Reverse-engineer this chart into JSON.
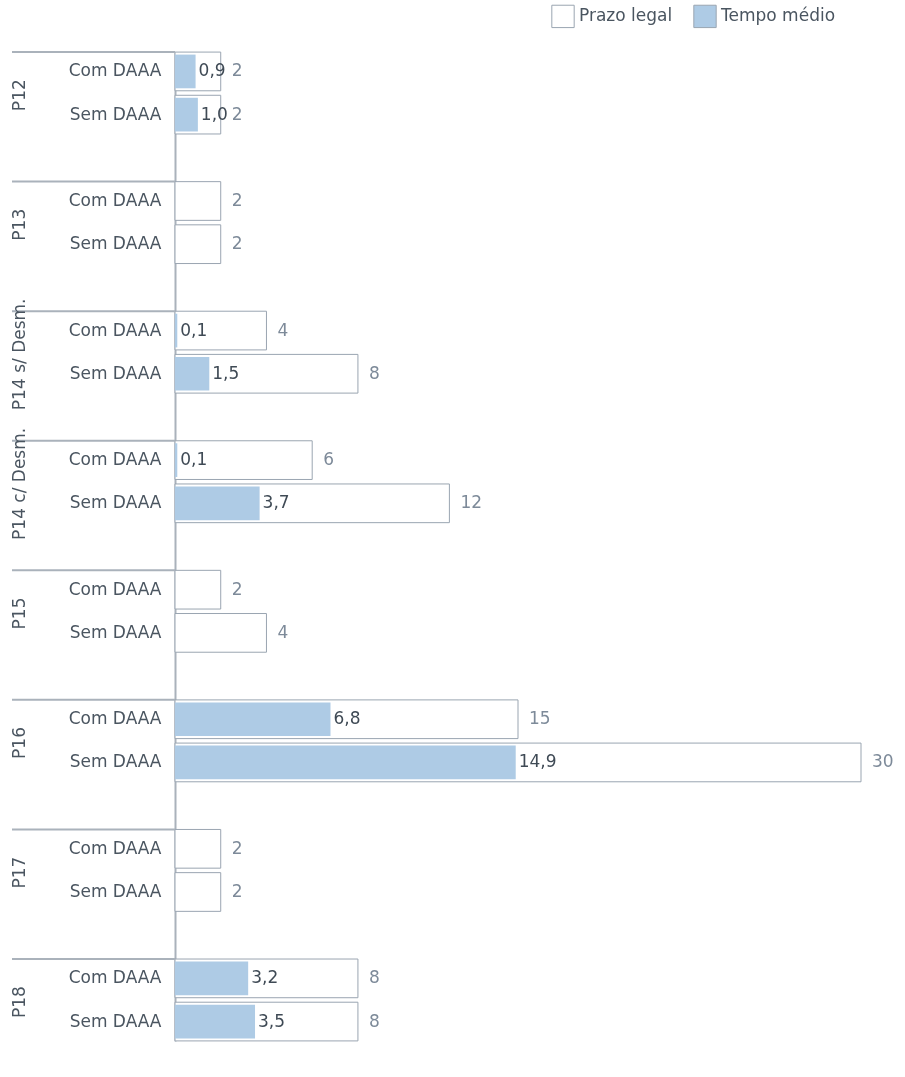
{
  "chart_data": {
    "type": "bar",
    "orientation": "horizontal",
    "legend": "top right",
    "categories": [
      "Com DAAA",
      "Sem DAAA",
      "Com DAAA",
      "Sem DAAA",
      "Com DAAA",
      "Sem DAAA",
      "Com DAAA",
      "Sem DAAA",
      "Com DAAA",
      "Sem DAAA",
      "Com DAAA",
      "Sem DAAA",
      "Com DAAA",
      "Sem DAAA",
      "Com DAAA",
      "Sem DAAA"
    ],
    "annotations": [
      "P12",
      "P13",
      "P14 s/ Desm.",
      "P14 c/ Desm.",
      "P15",
      "P16",
      "P17",
      "P18"
    ],
    "xlim": [
      0,
      30
    ],
    "series": [
      {
        "name": "Prazo legal",
        "color": "#ffffff",
        "values": [
          2,
          2,
          2,
          2,
          4,
          8,
          6,
          12,
          2,
          4,
          15,
          30,
          2,
          2,
          8,
          8
        ],
        "value_labels": [
          "2",
          "2",
          "2",
          "2",
          "4",
          "8",
          "6",
          "12",
          "2",
          "4",
          "15",
          "30",
          "2",
          "2",
          "8",
          "8"
        ]
      },
      {
        "name": "Tempo médio",
        "color": "#aecbe5",
        "values": [
          0.9,
          1.0,
          null,
          null,
          0.1,
          1.5,
          0.1,
          3.7,
          null,
          null,
          6.8,
          14.9,
          null,
          null,
          3.2,
          3.5
        ],
        "value_labels": [
          "0,9",
          "1,0",
          null,
          null,
          "0,1",
          "1,5",
          "0,1",
          "3,7",
          null,
          null,
          "6,8",
          "14,9",
          null,
          null,
          "3,2",
          "3,5"
        ]
      }
    ]
  }
}
